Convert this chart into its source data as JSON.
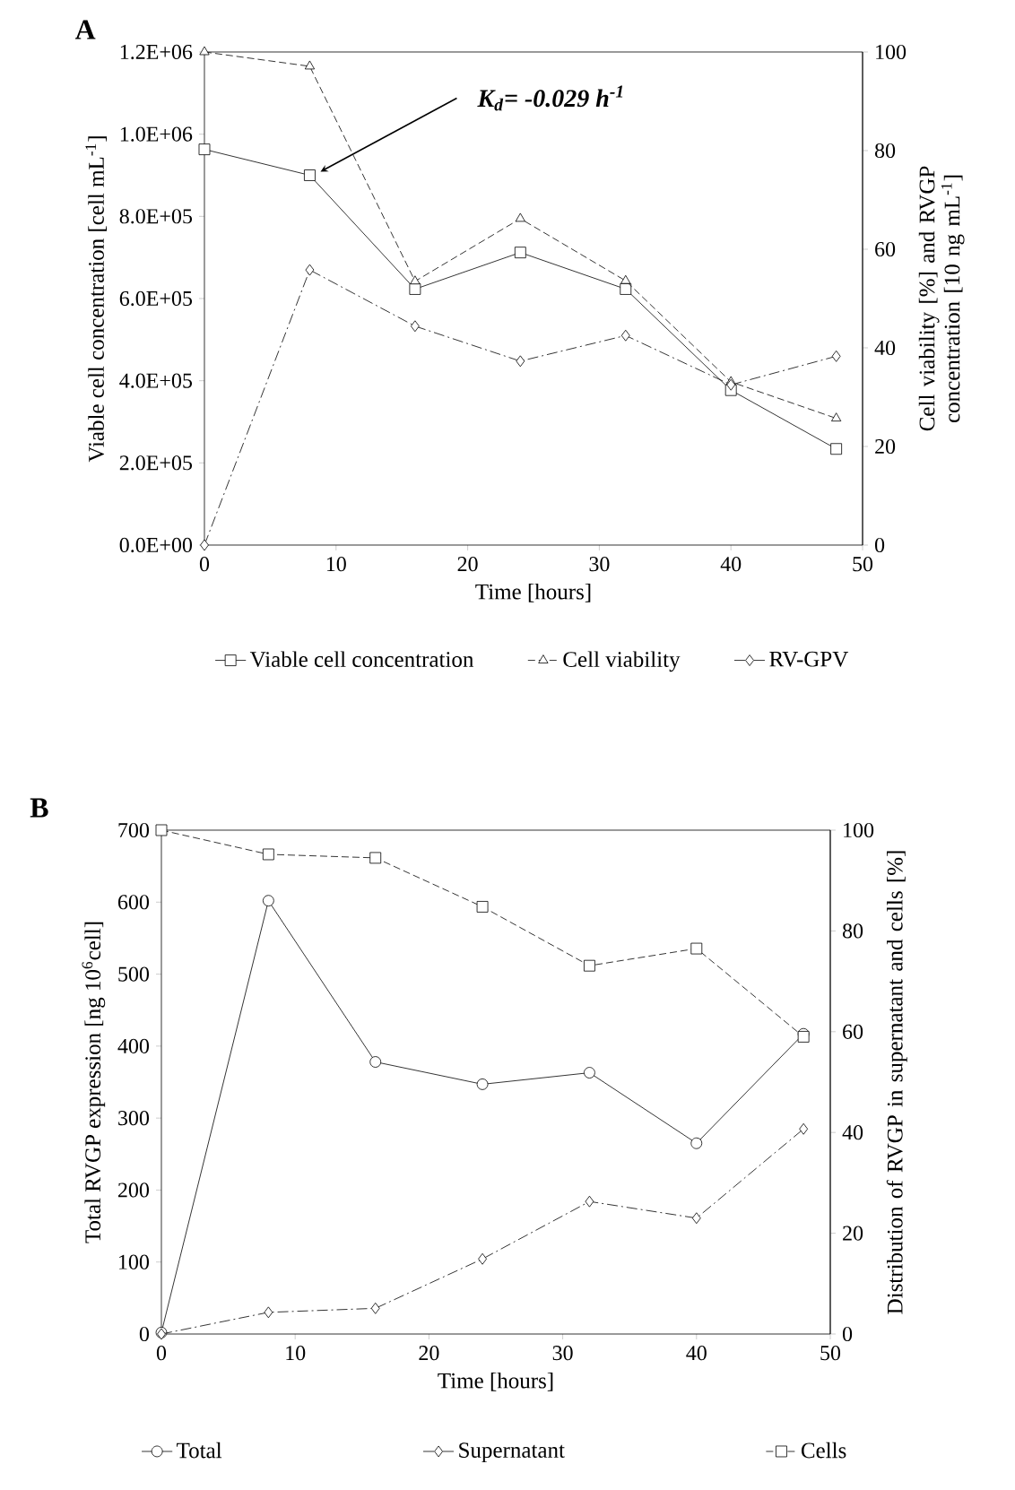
{
  "chart_data": [
    {
      "type": "line",
      "title": "A",
      "xlabel": "Time [hours]",
      "ylabel": "Viable cell concentration [cell mL$^{-1}$]",
      "y2label": "Cell viability  [%] and  RVGP concentration [10 ng mL$^{-1}$]",
      "xlim": [
        0,
        50
      ],
      "xticks": [
        0,
        10,
        20,
        30,
        40,
        50
      ],
      "ylim": [
        0,
        1200000
      ],
      "yticks": [
        {
          "value": 0,
          "label": "0.0E+00"
        },
        {
          "value": 200000,
          "label": "2.0E+05"
        },
        {
          "value": 400000,
          "label": "4.0E+05"
        },
        {
          "value": 600000,
          "label": "6.0E+05"
        },
        {
          "value": 800000,
          "label": "8.0E+05"
        },
        {
          "value": 1000000,
          "label": "1.0E+06"
        },
        {
          "value": 1200000,
          "label": "1.2E+06"
        }
      ],
      "y2lim": [
        0,
        100
      ],
      "y2ticks": [
        0,
        20,
        40,
        60,
        80,
        100
      ],
      "grid": false,
      "legend": "bottom",
      "x": [
        0,
        8,
        16,
        24,
        32,
        40,
        48
      ],
      "series": [
        {
          "name": "Viable cell concentration",
          "color": "#000000",
          "marker": "square",
          "line_style": "solid",
          "values": [
            963000,
            900000,
            623000,
            712000,
            623000,
            377000,
            234000
          ]
        },
        {
          "name": "Cell viability",
          "color": "#000000",
          "marker": "triangle",
          "line_style": "dashed",
          "axis": "y2",
          "values": [
            100,
            97.1,
            53.5,
            66.2,
            53.6,
            33.1,
            25.7
          ]
        },
        {
          "name": "RV-GPV",
          "color": "#000000",
          "marker": "diamond",
          "line_style": "dashdot",
          "axis": "y2",
          "values": [
            0,
            55.8,
            44.4,
            37.3,
            42.5,
            32.5,
            38.3
          ]
        }
      ],
      "annotations": [
        {
          "text": "K$_{d}$= -0.029 h$^{-1}$",
          "x": 8,
          "y": 900000
        }
      ]
    },
    {
      "type": "line",
      "title": "B",
      "xlabel": "Time [hours]",
      "ylabel": "Total RVGP expression [ng 10$^{6}$cell]",
      "y2label": "Distribution of RVGP in supernatant and  cells [%]",
      "xlim": [
        0,
        50
      ],
      "xticks": [
        0,
        10,
        20,
        30,
        40,
        50
      ],
      "ylim": [
        0,
        700
      ],
      "yticks": [
        0,
        100,
        200,
        300,
        400,
        500,
        600,
        700
      ],
      "y2lim": [
        0,
        100
      ],
      "y2ticks": [
        0,
        20,
        40,
        60,
        80,
        100
      ],
      "grid": false,
      "legend": "bottom",
      "x": [
        0,
        8,
        16,
        24,
        32,
        40,
        48
      ],
      "series": [
        {
          "name": "Total",
          "color": "#000000",
          "marker": "circle",
          "line_style": "solid",
          "values": [
            2,
            602,
            378,
            347,
            363,
            265,
            417
          ]
        },
        {
          "name": "Supernatant",
          "color": "#000000",
          "marker": "diamond",
          "line_style": "dashdot",
          "axis": "y2",
          "values": [
            0,
            4.3,
            5.1,
            14.9,
            26.3,
            23.0,
            40.7
          ]
        },
        {
          "name": "Cells",
          "color": "#000000",
          "marker": "square",
          "line_style": "dashed",
          "axis": "y2",
          "values": [
            100,
            95.2,
            94.5,
            84.8,
            73.1,
            76.5,
            59.0
          ]
        }
      ]
    }
  ]
}
